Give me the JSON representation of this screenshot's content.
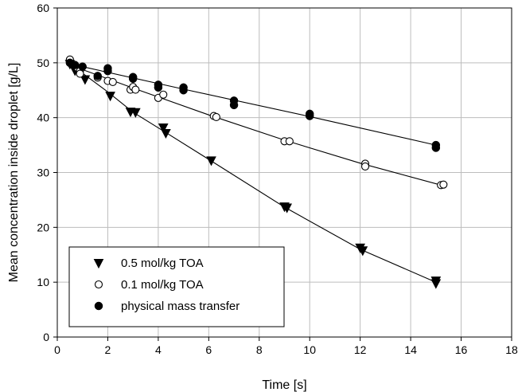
{
  "chart_data": {
    "type": "scatter",
    "title": "",
    "xlabel": "Time [s]",
    "ylabel": "Mean concentration inside droplet [g/L]",
    "xlim": [
      0,
      18
    ],
    "ylim": [
      0,
      60
    ],
    "xticks": [
      "0",
      "2",
      "4",
      "6",
      "8",
      "10",
      "12",
      "14",
      "16",
      "18"
    ],
    "yticks": [
      "0",
      "10",
      "20",
      "30",
      "40",
      "50",
      "60"
    ],
    "grid": true,
    "legend_position": "bottom-left",
    "series": [
      {
        "name": "0.5 mol/kg TOA",
        "marker": "triangle-down-filled",
        "color": "#000000",
        "points": [
          [
            0.5,
            49.8
          ],
          [
            0.7,
            48.6
          ],
          [
            1.1,
            47.0
          ],
          [
            2.1,
            44.0
          ],
          [
            2.9,
            41.1
          ],
          [
            3.1,
            41.0
          ],
          [
            4.2,
            38.2
          ],
          [
            4.3,
            37.2
          ],
          [
            6.1,
            32.2
          ],
          [
            9.0,
            23.8
          ],
          [
            9.1,
            23.6
          ],
          [
            12.0,
            16.3
          ],
          [
            12.1,
            15.8
          ],
          [
            15.0,
            10.3
          ],
          [
            15.0,
            9.8
          ]
        ],
        "fit": [
          [
            0.5,
            49.8
          ],
          [
            2.0,
            44.7
          ],
          [
            3.0,
            41.0
          ],
          [
            4.3,
            37.3
          ],
          [
            6.0,
            32.4
          ],
          [
            9.0,
            23.7
          ],
          [
            12.0,
            16.0
          ],
          [
            15.0,
            10.0
          ]
        ]
      },
      {
        "name": "0.1 mol/kg TOA",
        "marker": "circle-open",
        "color": "#000000",
        "points": [
          [
            0.5,
            50.6
          ],
          [
            0.5,
            50.0
          ],
          [
            0.8,
            49.1
          ],
          [
            0.9,
            48.5
          ],
          [
            0.9,
            48.0
          ],
          [
            1.6,
            47.3
          ],
          [
            2.0,
            46.7
          ],
          [
            2.2,
            46.5
          ],
          [
            2.9,
            45.1
          ],
          [
            3.0,
            45.6
          ],
          [
            3.1,
            45.1
          ],
          [
            4.0,
            43.6
          ],
          [
            4.2,
            44.2
          ],
          [
            6.2,
            40.3
          ],
          [
            6.3,
            40.1
          ],
          [
            9.0,
            35.7
          ],
          [
            9.2,
            35.7
          ],
          [
            12.2,
            31.6
          ],
          [
            12.2,
            31.1
          ],
          [
            15.2,
            27.7
          ],
          [
            15.3,
            27.8
          ]
        ],
        "fit": [
          [
            0.5,
            49.6
          ],
          [
            3.0,
            45.4
          ],
          [
            6.0,
            40.5
          ],
          [
            9.0,
            35.9
          ],
          [
            12.0,
            31.7
          ],
          [
            15.2,
            27.7
          ]
        ]
      },
      {
        "name": "physical mass transfer",
        "marker": "circle-filled",
        "color": "#000000",
        "points": [
          [
            0.5,
            50.0
          ],
          [
            0.7,
            49.6
          ],
          [
            1.0,
            49.3
          ],
          [
            1.6,
            47.6
          ],
          [
            2.0,
            49.0
          ],
          [
            2.0,
            48.5
          ],
          [
            3.0,
            47.4
          ],
          [
            3.0,
            47.1
          ],
          [
            4.0,
            46.0
          ],
          [
            4.0,
            45.5
          ],
          [
            5.0,
            45.5
          ],
          [
            5.0,
            45.0
          ],
          [
            7.0,
            43.1
          ],
          [
            7.0,
            42.3
          ],
          [
            10.0,
            40.7
          ],
          [
            10.0,
            40.3
          ],
          [
            15.0,
            35.0
          ],
          [
            15.0,
            34.5
          ]
        ],
        "fit": [
          [
            0.5,
            49.8
          ],
          [
            5.0,
            45.2
          ],
          [
            10.0,
            40.2
          ],
          [
            15.0,
            35.0
          ]
        ]
      }
    ]
  }
}
